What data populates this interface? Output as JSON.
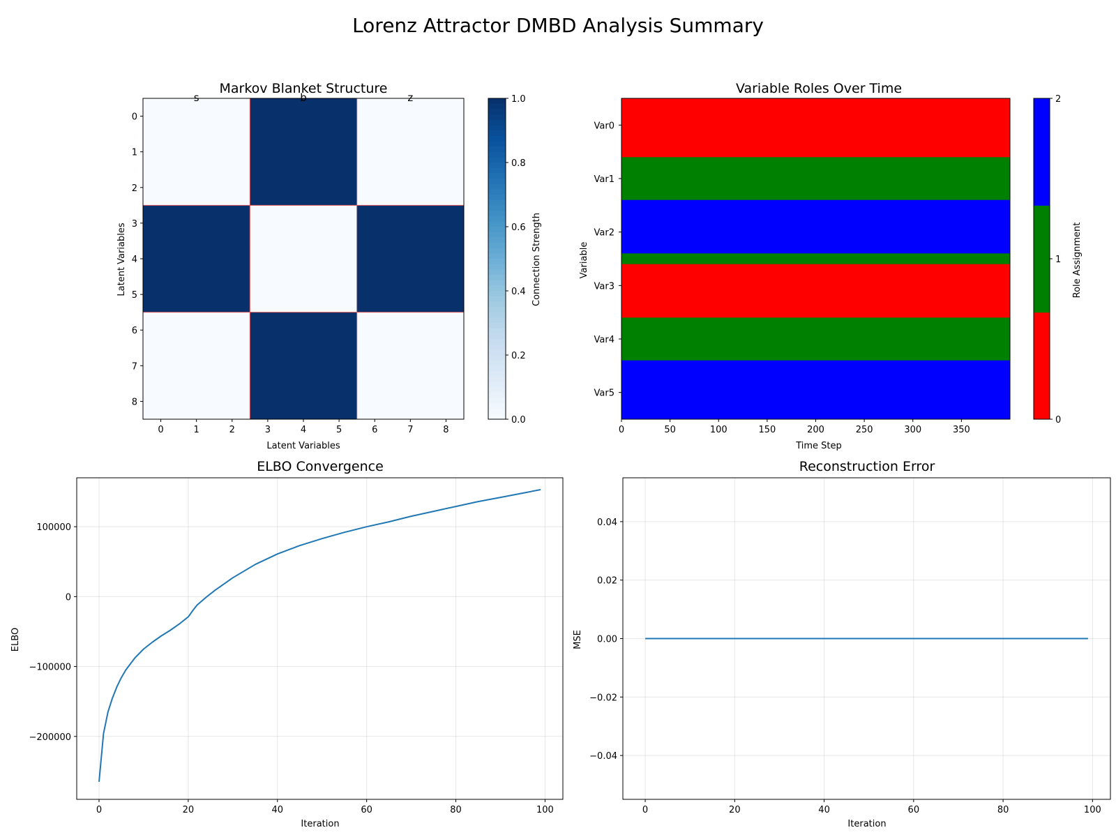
{
  "figure_title": "Lorenz Attractor DMBD Analysis Summary",
  "chart_data": [
    {
      "type": "heatmap",
      "title": "Markov Blanket Structure",
      "xlabel": "Latent Variables",
      "ylabel": "Latent Variables",
      "x_ticks": [
        "0",
        "1",
        "2",
        "3",
        "4",
        "5",
        "6",
        "7",
        "8"
      ],
      "y_ticks": [
        "0",
        "1",
        "2",
        "3",
        "4",
        "5",
        "6",
        "7",
        "8"
      ],
      "group_labels": [
        "s",
        "b",
        "z"
      ],
      "matrix": [
        [
          0,
          0,
          0,
          1,
          1,
          1,
          0,
          0,
          0
        ],
        [
          0,
          0,
          0,
          1,
          1,
          1,
          0,
          0,
          0
        ],
        [
          0,
          0,
          0,
          1,
          1,
          1,
          0,
          0,
          0
        ],
        [
          1,
          1,
          1,
          0,
          0,
          0,
          1,
          1,
          1
        ],
        [
          1,
          1,
          1,
          0,
          0,
          0,
          1,
          1,
          1
        ],
        [
          1,
          1,
          1,
          0,
          0,
          0,
          1,
          1,
          1
        ],
        [
          0,
          0,
          0,
          1,
          1,
          1,
          0,
          0,
          0
        ],
        [
          0,
          0,
          0,
          1,
          1,
          1,
          0,
          0,
          0
        ],
        [
          0,
          0,
          0,
          1,
          1,
          1,
          0,
          0,
          0
        ]
      ],
      "colormap": "Blues",
      "grid_line_color": "#e05a5a",
      "colorbar": {
        "label": "Connection Strength",
        "ticks": [
          "0.0",
          "0.2",
          "0.4",
          "0.6",
          "0.8",
          "1.0"
        ],
        "range": [
          0,
          1
        ]
      }
    },
    {
      "type": "heatmap",
      "title": "Variable Roles Over Time",
      "xlabel": "Time Step",
      "ylabel": "Variable",
      "x_ticks": [
        "0",
        "50",
        "100",
        "150",
        "200",
        "250",
        "300",
        "350"
      ],
      "xlim": [
        0,
        400
      ],
      "rows": [
        "Var0",
        "Var1",
        "Var2",
        "Var3",
        "Var4",
        "Var5"
      ],
      "bands": [
        {
          "from": 0.0,
          "to": 1.1,
          "role": 0
        },
        {
          "from": 1.1,
          "to": 1.9,
          "role": 1
        },
        {
          "from": 1.9,
          "to": 2.9,
          "role": 2
        },
        {
          "from": 2.9,
          "to": 3.1,
          "role": 1
        },
        {
          "from": 3.1,
          "to": 4.1,
          "role": 0
        },
        {
          "from": 4.1,
          "to": 4.9,
          "role": 1
        },
        {
          "from": 4.9,
          "to": 6.0,
          "role": 2
        }
      ],
      "role_colors": [
        "#ff0000",
        "#008000",
        "#0000ff"
      ],
      "colorbar": {
        "label": "Role Assignment",
        "ticks": [
          "0",
          "1",
          "2"
        ]
      }
    },
    {
      "type": "line",
      "title": "ELBO Convergence",
      "xlabel": "Iteration",
      "ylabel": "ELBO",
      "xlim": [
        -5,
        104
      ],
      "ylim": [
        -290000,
        170000
      ],
      "x_ticks": [
        0,
        20,
        40,
        60,
        80,
        100
      ],
      "y_ticks": [
        -200000,
        -100000,
        0,
        100000
      ],
      "y_tick_labels": [
        "−200000",
        "−100000",
        "0",
        "100000"
      ],
      "grid": true,
      "color": "#1f77b4",
      "x": [
        0,
        1,
        2,
        3,
        4,
        5,
        6,
        8,
        10,
        12,
        14,
        16,
        18,
        20,
        21,
        22,
        24,
        26,
        30,
        35,
        40,
        45,
        50,
        55,
        60,
        65,
        70,
        75,
        80,
        85,
        90,
        95,
        99
      ],
      "y": [
        -265000,
        -196000,
        -165000,
        -145000,
        -129000,
        -116000,
        -105000,
        -88000,
        -75000,
        -65000,
        -56000,
        -48000,
        -39000,
        -29000,
        -20000,
        -12000,
        -1000,
        9000,
        27000,
        46000,
        61000,
        73000,
        83000,
        92000,
        100000,
        107000,
        115000,
        122000,
        129000,
        136000,
        142000,
        148000,
        153000
      ]
    },
    {
      "type": "line",
      "title": "Reconstruction Error",
      "xlabel": "Iteration",
      "ylabel": "MSE",
      "xlim": [
        -5,
        104
      ],
      "ylim": [
        -0.055,
        0.055
      ],
      "x_ticks": [
        0,
        20,
        40,
        60,
        80,
        100
      ],
      "y_ticks": [
        -0.04,
        -0.02,
        0.0,
        0.02,
        0.04
      ],
      "y_tick_labels": [
        "−0.04",
        "−0.02",
        "0.00",
        "0.02",
        "0.04"
      ],
      "grid": true,
      "color": "#1f77b4",
      "x": [
        0,
        99
      ],
      "y": [
        0,
        0
      ]
    }
  ]
}
